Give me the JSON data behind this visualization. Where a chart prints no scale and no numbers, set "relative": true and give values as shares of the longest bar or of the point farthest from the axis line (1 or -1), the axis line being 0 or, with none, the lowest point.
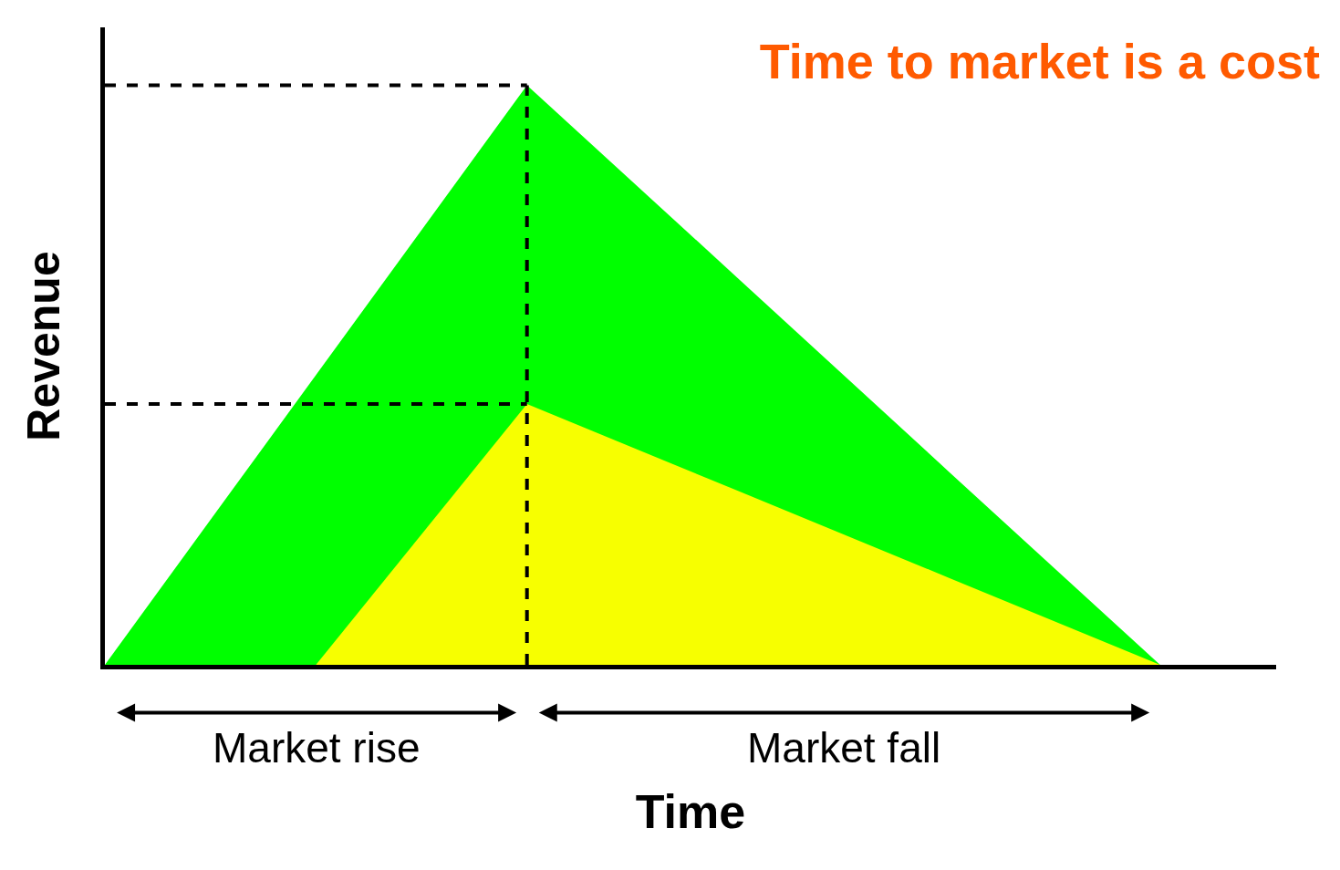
{
  "chart_data": {
    "type": "area",
    "title": "Time to market is a cost",
    "xlabel": "Time",
    "ylabel": "Revenue",
    "categories": [
      null,
      null,
      null,
      null,
      null,
      null
    ],
    "series": [
      {
        "color": "#00ff00",
        "values": [
          0,
          0.5,
          1,
          0.667,
          0.333,
          0
        ]
      },
      {
        "color": "#f7ff00",
        "values": [
          null,
          0,
          0.45,
          0.3,
          0.15,
          0
        ]
      }
    ],
    "ref_lines": [
      {
        "axis": "y",
        "value": 1,
        "line_style": "dashed",
        "color": "#000000"
      },
      {
        "axis": "y",
        "value": 0.45,
        "line_style": "dashed",
        "color": "#000000"
      }
    ],
    "annotations": [
      "Market rise",
      "Market fall"
    ],
    "relative": true
  }
}
